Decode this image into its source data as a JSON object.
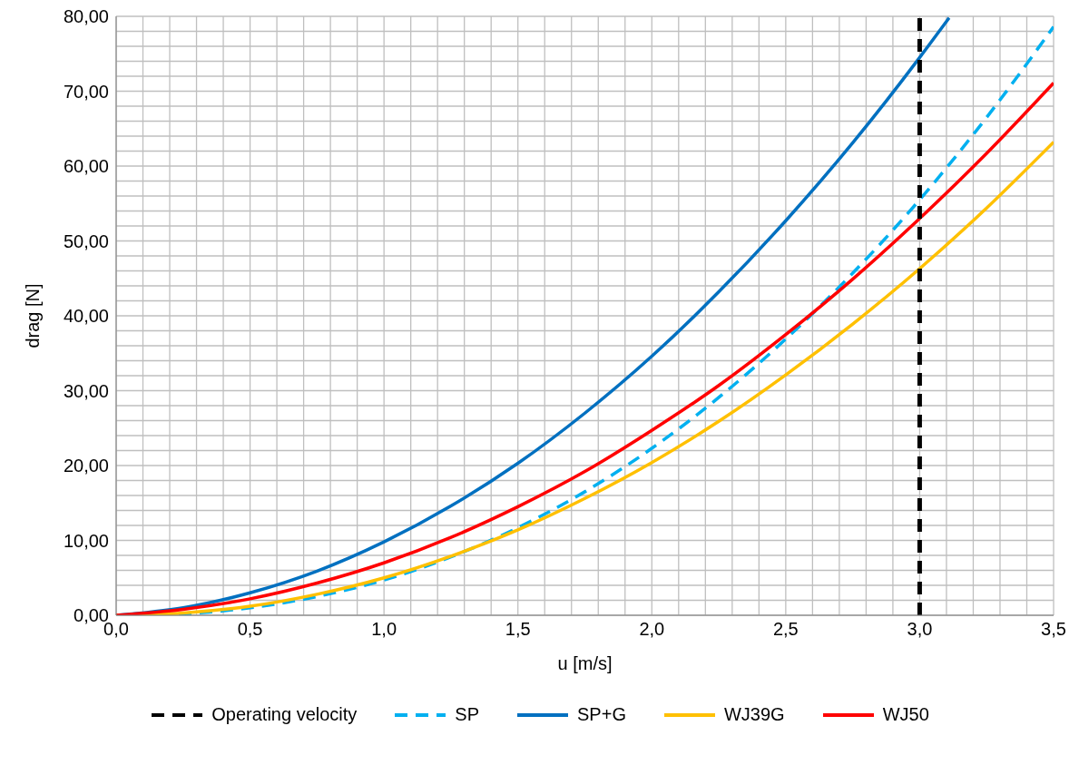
{
  "chart_data": {
    "type": "line",
    "xlabel": "u [m/s]",
    "ylabel": "drag [N]",
    "xlim": [
      0,
      3.5
    ],
    "ylim": [
      0,
      80
    ],
    "xticks": [
      {
        "value": 0,
        "label": "0,0"
      },
      {
        "value": 0.1,
        "label": null
      },
      {
        "value": 0.2,
        "label": null
      },
      {
        "value": 0.3,
        "label": null
      },
      {
        "value": 0.4,
        "label": null
      },
      {
        "value": 0.5,
        "label": "0,5"
      },
      {
        "value": 0.6,
        "label": null
      },
      {
        "value": 0.7,
        "label": null
      },
      {
        "value": 0.8,
        "label": null
      },
      {
        "value": 0.9,
        "label": null
      },
      {
        "value": 1,
        "label": "1,0"
      },
      {
        "value": 1.1,
        "label": null
      },
      {
        "value": 1.2,
        "label": null
      },
      {
        "value": 1.3,
        "label": null
      },
      {
        "value": 1.4,
        "label": null
      },
      {
        "value": 1.5,
        "label": "1,5"
      },
      {
        "value": 1.6,
        "label": null
      },
      {
        "value": 1.7,
        "label": null
      },
      {
        "value": 1.8,
        "label": null
      },
      {
        "value": 1.9,
        "label": null
      },
      {
        "value": 2,
        "label": "2,0"
      },
      {
        "value": 2.1,
        "label": null
      },
      {
        "value": 2.2,
        "label": null
      },
      {
        "value": 2.3,
        "label": null
      },
      {
        "value": 2.4,
        "label": null
      },
      {
        "value": 2.5,
        "label": "2,5"
      },
      {
        "value": 2.6,
        "label": null
      },
      {
        "value": 2.7,
        "label": null
      },
      {
        "value": 2.8,
        "label": null
      },
      {
        "value": 2.9,
        "label": null
      },
      {
        "value": 3,
        "label": "3,0"
      },
      {
        "value": 3.1,
        "label": null
      },
      {
        "value": 3.2,
        "label": null
      },
      {
        "value": 3.3,
        "label": null
      },
      {
        "value": 3.4,
        "label": null
      },
      {
        "value": 3.5,
        "label": "3,5"
      }
    ],
    "yticks": [
      {
        "value": 0,
        "label": "0,00"
      },
      {
        "value": 2,
        "label": null
      },
      {
        "value": 4,
        "label": null
      },
      {
        "value": 6,
        "label": null
      },
      {
        "value": 8,
        "label": null
      },
      {
        "value": 10,
        "label": "10,00"
      },
      {
        "value": 12,
        "label": null
      },
      {
        "value": 14,
        "label": null
      },
      {
        "value": 16,
        "label": null
      },
      {
        "value": 18,
        "label": null
      },
      {
        "value": 20,
        "label": "20,00"
      },
      {
        "value": 22,
        "label": null
      },
      {
        "value": 24,
        "label": null
      },
      {
        "value": 26,
        "label": null
      },
      {
        "value": 28,
        "label": null
      },
      {
        "value": 30,
        "label": "30,00"
      },
      {
        "value": 32,
        "label": null
      },
      {
        "value": 34,
        "label": null
      },
      {
        "value": 36,
        "label": null
      },
      {
        "value": 38,
        "label": null
      },
      {
        "value": 40,
        "label": "40,00"
      },
      {
        "value": 42,
        "label": null
      },
      {
        "value": 44,
        "label": null
      },
      {
        "value": 46,
        "label": null
      },
      {
        "value": 48,
        "label": null
      },
      {
        "value": 50,
        "label": "50,00"
      },
      {
        "value": 52,
        "label": null
      },
      {
        "value": 54,
        "label": null
      },
      {
        "value": 56,
        "label": null
      },
      {
        "value": 58,
        "label": null
      },
      {
        "value": 60,
        "label": "60,00"
      },
      {
        "value": 62,
        "label": null
      },
      {
        "value": 64,
        "label": null
      },
      {
        "value": 66,
        "label": null
      },
      {
        "value": 68,
        "label": null
      },
      {
        "value": 70,
        "label": "70,00"
      },
      {
        "value": 72,
        "label": null
      },
      {
        "value": 74,
        "label": null
      },
      {
        "value": 76,
        "label": null
      },
      {
        "value": 78,
        "label": null
      },
      {
        "value": 80,
        "label": "80,00"
      }
    ],
    "x": [
      0,
      0.25,
      0.5,
      0.75,
      1,
      1.25,
      1.5,
      1.75,
      2,
      2.25,
      2.5,
      2.75,
      3,
      3.25,
      3.5
    ],
    "grid": true,
    "legend": "bottom",
    "marker": "none",
    "ref_lines": [
      {
        "axis": "x",
        "value": 3,
        "label": "Operating velocity",
        "color": "#000000",
        "line_style": "dashed"
      }
    ],
    "series": [
      {
        "name": "SP",
        "color": "#00b0f0",
        "line_style": "dashed",
        "values": [
          0,
          0.2,
          1,
          2.5,
          4.7,
          7.8,
          11.7,
          16.5,
          22.3,
          29.1,
          36.9,
          45.7,
          55.5,
          66.5,
          78.6
        ]
      },
      {
        "name": "SP+G",
        "color": "#0070c0",
        "line_style": "solid",
        "x": [
          0,
          0.25,
          0.5,
          0.75,
          1,
          1.25,
          1.5,
          1.75,
          2,
          2.25,
          2.5,
          2.75,
          3,
          3.11
        ],
        "values": [
          0,
          1,
          3,
          5.9,
          9.8,
          14.6,
          20.3,
          27,
          34.6,
          43.2,
          52.7,
          63.1,
          74.5,
          79.8
        ]
      },
      {
        "name": "WJ39G",
        "color": "#ffc000",
        "line_style": "solid",
        "values": [
          0,
          0.3,
          1.2,
          2.8,
          5,
          7.9,
          11.4,
          15.6,
          20.4,
          25.9,
          32.1,
          38.9,
          46.3,
          54.4,
          63.2
        ]
      },
      {
        "name": "WJ50",
        "color": "#ff0000",
        "line_style": "solid",
        "values": [
          0,
          0.8,
          2.2,
          4.3,
          7,
          10.4,
          14.5,
          19.2,
          24.7,
          30.7,
          37.5,
          44.9,
          53,
          61.7,
          71.1
        ]
      }
    ]
  }
}
